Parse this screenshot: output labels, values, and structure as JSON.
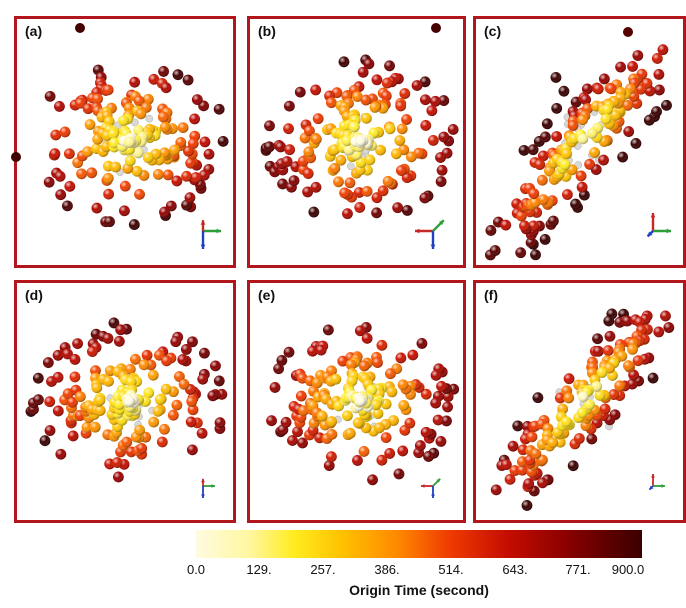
{
  "panels": [
    {
      "label": "(a)",
      "pattern": "round"
    },
    {
      "label": "(b)",
      "pattern": "round"
    },
    {
      "label": "(c)",
      "pattern": "diagonal"
    },
    {
      "label": "(d)",
      "pattern": "round"
    },
    {
      "label": "(e)",
      "pattern": "round"
    },
    {
      "label": "(f)",
      "pattern": "diagonal"
    }
  ],
  "colorbar": {
    "title": "Origin Time (second)",
    "min": 0.0,
    "max": 900.0,
    "ticks": [
      "0.0",
      "129.",
      "257.",
      "386.",
      "514.",
      "643.",
      "771.",
      "900.0"
    ],
    "colors": [
      "#fffbe0",
      "#ffec20",
      "#ffc000",
      "#ff8a00",
      "#ef3a00",
      "#c40d00",
      "#8a0000",
      "#3a0000"
    ]
  },
  "colors": {
    "frame": "#b0161b",
    "axis_red": "#c62828",
    "axis_green": "#2e9d3a",
    "axis_blue": "#1f3fc4",
    "center_gray": "#d8d8d8"
  }
}
